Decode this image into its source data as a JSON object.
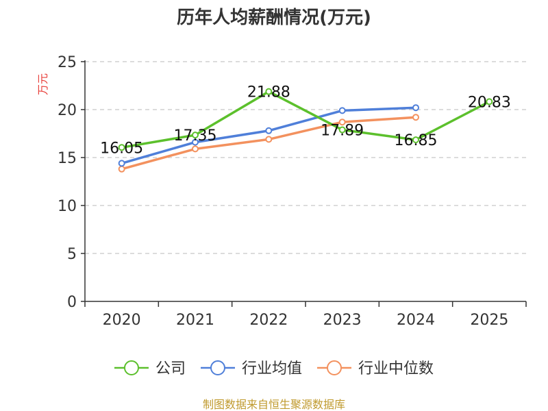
{
  "chart_data": {
    "type": "line",
    "title": "历年人均薪酬情况(万元)",
    "ylabel": "万元",
    "xlabel": "",
    "categories": [
      "2020",
      "2021",
      "2022",
      "2023",
      "2024",
      "2025"
    ],
    "ylim": [
      0,
      25
    ],
    "yticks": [
      0,
      5,
      10,
      15,
      20,
      25
    ],
    "grid": true,
    "legend_position": "bottom",
    "series": [
      {
        "name": "公司",
        "color": "#5cc02c",
        "values": [
          16.05,
          17.35,
          21.88,
          17.89,
          16.85,
          20.83
        ],
        "labels": [
          "16.05",
          "17.35",
          "21.88",
          "17.89",
          "16.85",
          "20.83"
        ]
      },
      {
        "name": "行业均值",
        "color": "#4f7fd9",
        "values": [
          14.4,
          16.6,
          17.8,
          19.9,
          20.2,
          null
        ]
      },
      {
        "name": "行业中位数",
        "color": "#f3915e",
        "values": [
          13.8,
          15.9,
          16.9,
          18.7,
          19.2,
          null
        ]
      }
    ],
    "source": "制图数据来自恒生聚源数据库"
  }
}
